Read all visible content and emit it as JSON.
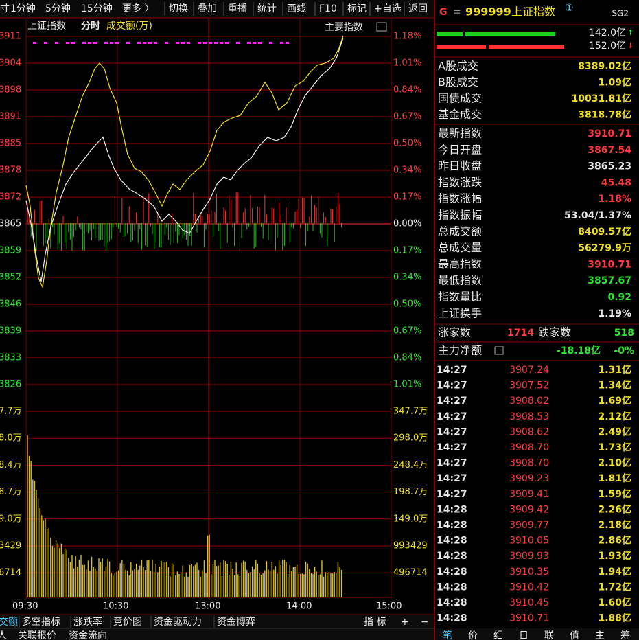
{
  "toolbar": [
    "寸",
    "1分钟",
    "5分钟",
    "15分钟",
    "更多 〉",
    "切换",
    "叠加",
    "重播",
    "统计",
    "画线",
    "F10",
    "标记",
    "+自选",
    "返回"
  ],
  "header": {
    "prefix": "G",
    "code": "999999",
    "name": "上证指数",
    "badge": "①",
    "sg": "SG2"
  },
  "chart": {
    "title": "上证指数",
    "mode": "分时",
    "indicator": "成交额(万)",
    "index_button": "主要指数",
    "price_labels": [
      "3911",
      "3904",
      "3898",
      "3891",
      "3885",
      "3878",
      "3872",
      "3865",
      "3859",
      "3852",
      "3846",
      "3839",
      "3833",
      "3826"
    ],
    "pct_labels": [
      "1.18%",
      "1.01%",
      "0.84%",
      "0.67%",
      "0.50%",
      "0.34%",
      "0.17%",
      "0.00%",
      "0.17%",
      "0.34%",
      "0.50%",
      "0.67%",
      "0.84%",
      "1.01%"
    ],
    "volume_left": [
      "7.7万",
      "8.0万",
      "8.4万",
      "8.7万",
      "9.0万",
      "3429",
      "6714"
    ],
    "volume_right": [
      "347.7万",
      "298.0万",
      "248.4万",
      "198.7万",
      "149.0万",
      "993429",
      "496714"
    ],
    "times": [
      "09:30",
      "10:30",
      "13:00",
      "14:00",
      "15:00"
    ]
  },
  "flow_bars": {
    "buy": "142.0亿",
    "sell": "152.0亿"
  },
  "turnover": [
    [
      "A股成交",
      "8389.02亿"
    ],
    [
      "B股成交",
      "1.09亿"
    ],
    [
      "国债成交",
      "10031.81亿"
    ],
    [
      "基金成交",
      "3818.78亿"
    ]
  ],
  "stats": [
    [
      "最新指数",
      "3910.71"
    ],
    [
      "今日开盘",
      "3867.54"
    ],
    [
      "昨日收盘",
      "3865.23"
    ],
    [
      "指数涨跌",
      "45.48"
    ],
    [
      "指数涨幅",
      "1.18%"
    ],
    [
      "指数振幅",
      "53.04/1.37%"
    ],
    [
      "总成交额",
      "8409.57亿"
    ],
    [
      "总成交量",
      "56279.9万"
    ],
    [
      "最高指数",
      "3910.71"
    ],
    [
      "最低指数",
      "3857.67"
    ],
    [
      "指数量比",
      "0.92"
    ],
    [
      "上证换手",
      "1.19%"
    ]
  ],
  "breadth": {
    "up_label": "涨家数",
    "up": "1714",
    "down_label": "跌家数",
    "down": "518"
  },
  "main_flow": {
    "label": "主力净额",
    "value": "-18.18亿",
    "pct": "-0%"
  },
  "ticks": [
    [
      "14:27",
      "3907.24",
      "1.31亿"
    ],
    [
      "14:27",
      "3907.52",
      "1.34亿"
    ],
    [
      "14:27",
      "3908.02",
      "1.69亿"
    ],
    [
      "14:27",
      "3908.53",
      "2.12亿"
    ],
    [
      "14:27",
      "3908.62",
      "2.49亿"
    ],
    [
      "14:27",
      "3908.70",
      "1.73亿"
    ],
    [
      "14:27",
      "3908.70",
      "2.10亿"
    ],
    [
      "14:27",
      "3909.23",
      "1.81亿"
    ],
    [
      "14:27",
      "3909.41",
      "1.59亿"
    ],
    [
      "14:28",
      "3909.42",
      "2.26亿"
    ],
    [
      "14:28",
      "3909.77",
      "2.18亿"
    ],
    [
      "14:28",
      "3910.05",
      "2.86亿"
    ],
    [
      "14:28",
      "3909.93",
      "1.93亿"
    ],
    [
      "14:28",
      "3910.35",
      "1.94亿"
    ],
    [
      "14:28",
      "3910.42",
      "1.72亿"
    ],
    [
      "14:28",
      "3910.45",
      "1.60亿"
    ],
    [
      "14:28",
      "3910.71",
      "1.88亿"
    ]
  ],
  "bottom_tabs": [
    "交额",
    "多空指标",
    "涨跌率",
    "竞价图",
    "资金驱动力",
    "资金博弈"
  ],
  "bottom_tools": [
    "指 标",
    "+",
    "−"
  ],
  "bottom_row": [
    "人",
    "关联报价",
    "资金流向"
  ],
  "side_tabs": [
    "笔",
    "价",
    "细",
    "日",
    "联",
    "值",
    "主",
    "筹"
  ]
}
